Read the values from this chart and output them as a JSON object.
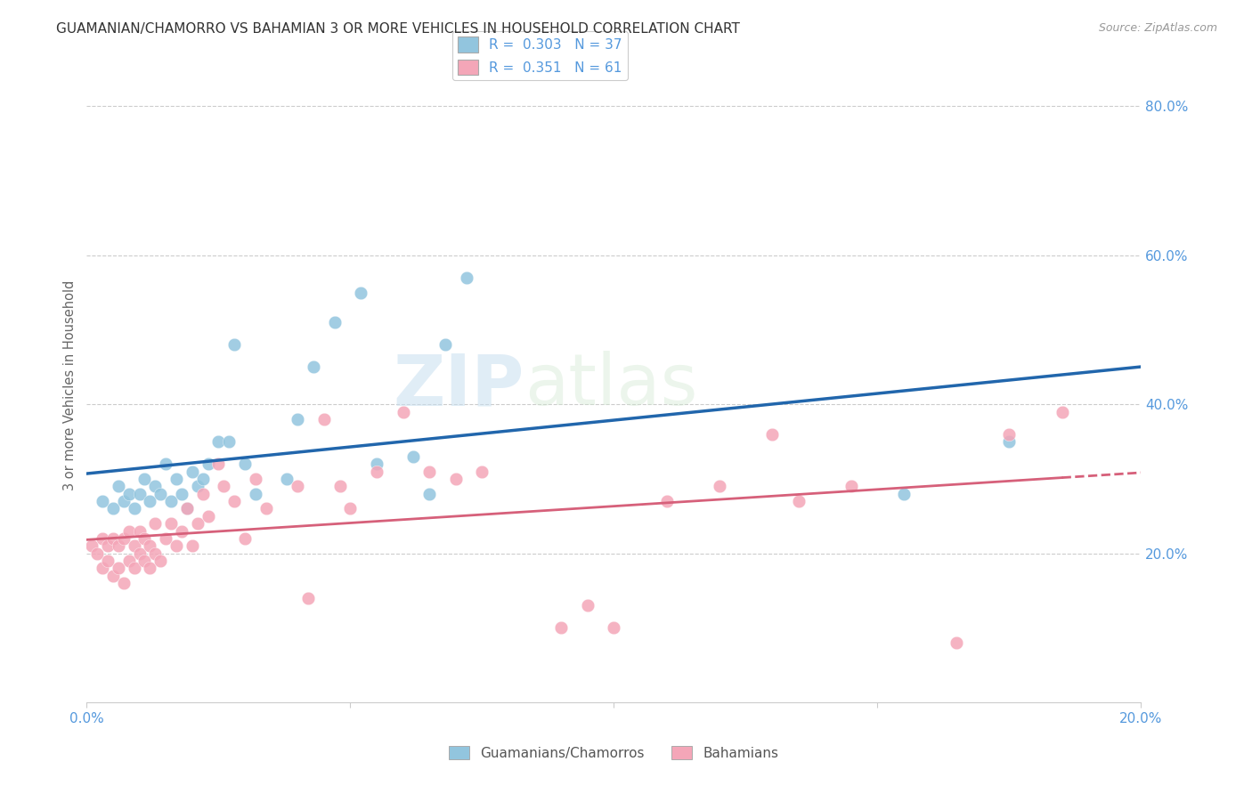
{
  "title": "GUAMANIAN/CHAMORRO VS BAHAMIAN 3 OR MORE VEHICLES IN HOUSEHOLD CORRELATION CHART",
  "source": "Source: ZipAtlas.com",
  "ylabel": "3 or more Vehicles in Household",
  "legend_label1": "Guamanians/Chamorros",
  "legend_label2": "Bahamians",
  "r1": "0.303",
  "n1": "37",
  "r2": "0.351",
  "n2": "61",
  "xmin": 0.0,
  "xmax": 0.2,
  "ymin": 0.0,
  "ymax": 0.85,
  "color_blue": "#92c5de",
  "color_pink": "#f4a6b8",
  "color_blue_line": "#2166ac",
  "color_pink_line": "#d6607a",
  "color_axis_label": "#5599dd",
  "watermark_zip": "ZIP",
  "watermark_atlas": "atlas",
  "blue_x": [
    0.003,
    0.005,
    0.006,
    0.007,
    0.008,
    0.009,
    0.01,
    0.011,
    0.012,
    0.013,
    0.014,
    0.015,
    0.016,
    0.017,
    0.018,
    0.019,
    0.02,
    0.021,
    0.022,
    0.023,
    0.025,
    0.027,
    0.028,
    0.03,
    0.032,
    0.038,
    0.04,
    0.043,
    0.047,
    0.052,
    0.055,
    0.062,
    0.065,
    0.068,
    0.072,
    0.155,
    0.175
  ],
  "blue_y": [
    0.27,
    0.26,
    0.29,
    0.27,
    0.28,
    0.26,
    0.28,
    0.3,
    0.27,
    0.29,
    0.28,
    0.32,
    0.27,
    0.3,
    0.28,
    0.26,
    0.31,
    0.29,
    0.3,
    0.32,
    0.35,
    0.35,
    0.48,
    0.32,
    0.28,
    0.3,
    0.38,
    0.45,
    0.51,
    0.55,
    0.32,
    0.33,
    0.28,
    0.48,
    0.57,
    0.28,
    0.35
  ],
  "pink_x": [
    0.001,
    0.002,
    0.003,
    0.003,
    0.004,
    0.004,
    0.005,
    0.005,
    0.006,
    0.006,
    0.007,
    0.007,
    0.008,
    0.008,
    0.009,
    0.009,
    0.01,
    0.01,
    0.011,
    0.011,
    0.012,
    0.012,
    0.013,
    0.013,
    0.014,
    0.015,
    0.016,
    0.017,
    0.018,
    0.019,
    0.02,
    0.021,
    0.022,
    0.023,
    0.025,
    0.026,
    0.028,
    0.03,
    0.032,
    0.034,
    0.04,
    0.042,
    0.045,
    0.048,
    0.05,
    0.055,
    0.06,
    0.065,
    0.07,
    0.075,
    0.09,
    0.095,
    0.1,
    0.11,
    0.12,
    0.13,
    0.135,
    0.145,
    0.165,
    0.175,
    0.185
  ],
  "pink_y": [
    0.21,
    0.2,
    0.18,
    0.22,
    0.19,
    0.21,
    0.17,
    0.22,
    0.18,
    0.21,
    0.16,
    0.22,
    0.19,
    0.23,
    0.18,
    0.21,
    0.2,
    0.23,
    0.19,
    0.22,
    0.18,
    0.21,
    0.2,
    0.24,
    0.19,
    0.22,
    0.24,
    0.21,
    0.23,
    0.26,
    0.21,
    0.24,
    0.28,
    0.25,
    0.32,
    0.29,
    0.27,
    0.22,
    0.3,
    0.26,
    0.29,
    0.14,
    0.38,
    0.29,
    0.26,
    0.31,
    0.39,
    0.31,
    0.3,
    0.31,
    0.1,
    0.13,
    0.1,
    0.27,
    0.29,
    0.36,
    0.27,
    0.29,
    0.08,
    0.36,
    0.39
  ]
}
